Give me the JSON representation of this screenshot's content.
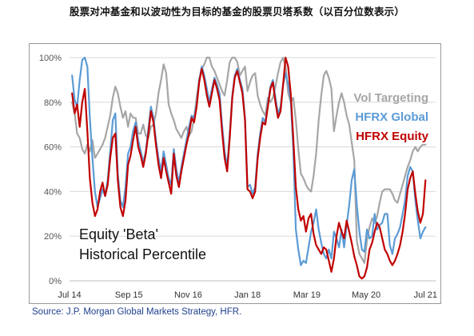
{
  "title": "股票对冲基金和以波动性为目标的基金的股票贝塔系数（以百分位数表示）",
  "source": "Source: J.P. Morgan Global Markets Strategy, HFR.",
  "chart_data": {
    "type": "line",
    "title": "",
    "xlabel": "",
    "ylabel": "",
    "ylim": [
      0,
      100
    ],
    "xlim": [
      2014.5,
      2021.7
    ],
    "y_ticks": [
      0,
      20,
      40,
      60,
      80,
      100
    ],
    "y_tick_labels": [
      "0%",
      "20%",
      "40%",
      "60%",
      "80%",
      "100%"
    ],
    "x_ticks": [
      2014.5,
      2015.667,
      2016.833,
      2018.0,
      2019.167,
      2020.333,
      2021.5
    ],
    "x_tick_labels": [
      "Jul 14",
      "Sep 15",
      "Nov 16",
      "Jan 18",
      "Mar 19",
      "May 20",
      "Jul 21"
    ],
    "grid": "horizontal",
    "legend_position": "top-right",
    "annotation": [
      "Equity 'Beta'",
      "Historical Percentile"
    ],
    "series": [
      {
        "name": "Vol Targeting",
        "color": "#a6a6a6",
        "x": [
          2014.55,
          2014.6,
          2014.65,
          2014.7,
          2014.75,
          2014.8,
          2014.85,
          2014.9,
          2014.95,
          2015.0,
          2015.05,
          2015.1,
          2015.15,
          2015.2,
          2015.25,
          2015.3,
          2015.35,
          2015.4,
          2015.45,
          2015.5,
          2015.55,
          2015.6,
          2015.65,
          2015.7,
          2015.75,
          2015.8,
          2015.85,
          2015.9,
          2015.95,
          2016.0,
          2016.05,
          2016.1,
          2016.15,
          2016.2,
          2016.25,
          2016.3,
          2016.35,
          2016.4,
          2016.45,
          2016.5,
          2016.55,
          2016.6,
          2016.65,
          2016.7,
          2016.75,
          2016.8,
          2016.85,
          2016.9,
          2016.95,
          2017.0,
          2017.05,
          2017.1,
          2017.15,
          2017.2,
          2017.25,
          2017.3,
          2017.35,
          2017.4,
          2017.45,
          2017.5,
          2017.55,
          2017.6,
          2017.65,
          2017.7,
          2017.75,
          2017.8,
          2017.85,
          2017.9,
          2017.95,
          2018.0,
          2018.05,
          2018.1,
          2018.15,
          2018.2,
          2018.25,
          2018.3,
          2018.35,
          2018.4,
          2018.45,
          2018.5,
          2018.55,
          2018.6,
          2018.65,
          2018.7,
          2018.75,
          2018.8,
          2018.85,
          2018.9,
          2018.95,
          2019.0,
          2019.05,
          2019.1,
          2019.15,
          2019.2,
          2019.25,
          2019.3,
          2019.35,
          2019.4,
          2019.45,
          2019.5,
          2019.55,
          2019.6,
          2019.65,
          2019.7,
          2019.75,
          2019.8,
          2019.85,
          2019.9,
          2019.95,
          2020.0,
          2020.05,
          2020.1,
          2020.15,
          2020.2,
          2020.25,
          2020.3,
          2020.35,
          2020.4,
          2020.45,
          2020.5,
          2020.55,
          2020.6,
          2020.65,
          2020.7,
          2020.75,
          2020.8,
          2020.85,
          2020.9,
          2020.95,
          2021.0,
          2021.05,
          2021.1,
          2021.15,
          2021.2,
          2021.25,
          2021.3,
          2021.35,
          2021.4,
          2021.45,
          2021.5
        ],
        "values": [
          80,
          75,
          66,
          64,
          59,
          57,
          61,
          58,
          63,
          55,
          57,
          59,
          61,
          64,
          69,
          74,
          82,
          87,
          84,
          78,
          73,
          76,
          69,
          75,
          73,
          73,
          66,
          66,
          70,
          65,
          64,
          69,
          70,
          75,
          84,
          90,
          97,
          93,
          79,
          75,
          72,
          68,
          66,
          64,
          67,
          69,
          65,
          67,
          73,
          82,
          90,
          95,
          97,
          100,
          100,
          96,
          94,
          91,
          88,
          85,
          83,
          90,
          98,
          100,
          100,
          98,
          92,
          94,
          96,
          85,
          89,
          92,
          93,
          83,
          79,
          76,
          74,
          82,
          80,
          82,
          87,
          93,
          98,
          100,
          96,
          84,
          80,
          82,
          72,
          59,
          48,
          46,
          43,
          41,
          40,
          47,
          57,
          72,
          83,
          92,
          94,
          91,
          86,
          67,
          74,
          80,
          84,
          80,
          74,
          70,
          62,
          54,
          18,
          12,
          10,
          8,
          18,
          24,
          28,
          26,
          29,
          35,
          40,
          41,
          41,
          41,
          39,
          36,
          35,
          39,
          43,
          47,
          51,
          54,
          58,
          60,
          58,
          60,
          61,
          61
        ]
      },
      {
        "name": "HFRX Global",
        "color": "#5b9bd5",
        "x": [
          2014.55,
          2014.6,
          2014.65,
          2014.7,
          2014.75,
          2014.8,
          2014.85,
          2014.9,
          2014.95,
          2015.0,
          2015.05,
          2015.1,
          2015.15,
          2015.2,
          2015.25,
          2015.3,
          2015.35,
          2015.4,
          2015.45,
          2015.5,
          2015.55,
          2015.6,
          2015.65,
          2015.7,
          2015.75,
          2015.8,
          2015.85,
          2015.9,
          2015.95,
          2016.0,
          2016.05,
          2016.1,
          2016.15,
          2016.2,
          2016.25,
          2016.3,
          2016.35,
          2016.4,
          2016.45,
          2016.5,
          2016.55,
          2016.6,
          2016.65,
          2016.7,
          2016.75,
          2016.8,
          2016.85,
          2016.9,
          2016.95,
          2017.0,
          2017.05,
          2017.1,
          2017.15,
          2017.2,
          2017.25,
          2017.3,
          2017.35,
          2017.4,
          2017.45,
          2017.5,
          2017.55,
          2017.6,
          2017.65,
          2017.7,
          2017.75,
          2017.8,
          2017.85,
          2017.9,
          2017.95,
          2018.0,
          2018.05,
          2018.1,
          2018.15,
          2018.2,
          2018.25,
          2018.3,
          2018.35,
          2018.4,
          2018.45,
          2018.5,
          2018.55,
          2018.6,
          2018.65,
          2018.7,
          2018.75,
          2018.8,
          2018.85,
          2018.9,
          2018.95,
          2019.0,
          2019.05,
          2019.1,
          2019.15,
          2019.2,
          2019.25,
          2019.3,
          2019.35,
          2019.4,
          2019.45,
          2019.5,
          2019.55,
          2019.6,
          2019.65,
          2019.7,
          2019.75,
          2019.8,
          2019.85,
          2019.9,
          2019.95,
          2020.0,
          2020.05,
          2020.1,
          2020.15,
          2020.2,
          2020.25,
          2020.3,
          2020.35,
          2020.4,
          2020.45,
          2020.5,
          2020.55,
          2020.6,
          2020.65,
          2020.7,
          2020.75,
          2020.8,
          2020.85,
          2020.9,
          2020.95,
          2021.0,
          2021.05,
          2021.1,
          2021.15,
          2021.2,
          2021.25,
          2021.3,
          2021.35,
          2021.4,
          2021.45,
          2021.5
        ],
        "values": [
          92,
          81,
          78,
          90,
          99,
          100,
          96,
          73,
          55,
          40,
          33,
          37,
          41,
          38,
          45,
          58,
          72,
          75,
          48,
          36,
          33,
          42,
          57,
          60,
          67,
          71,
          63,
          58,
          53,
          58,
          68,
          78,
          73,
          63,
          55,
          49,
          58,
          52,
          46,
          43,
          59,
          50,
          44,
          51,
          57,
          63,
          69,
          74,
          73,
          79,
          90,
          96,
          92,
          86,
          80,
          86,
          91,
          88,
          84,
          70,
          58,
          51,
          66,
          83,
          92,
          95,
          90,
          86,
          73,
          42,
          43,
          39,
          42,
          57,
          66,
          73,
          71,
          79,
          87,
          90,
          82,
          75,
          78,
          88,
          93,
          88,
          81,
          59,
          23,
          14,
          7,
          9,
          8,
          15,
          22,
          26,
          32,
          23,
          17,
          12,
          10,
          14,
          10,
          22,
          19,
          15,
          23,
          15,
          25,
          34,
          45,
          50,
          34,
          22,
          14,
          13,
          23,
          19,
          20,
          30,
          23,
          25,
          26,
          30,
          30,
          16,
          12,
          19,
          21,
          24,
          30,
          36,
          47,
          51,
          49,
          36,
          27,
          19,
          22,
          24
        ]
      },
      {
        "name": "HFRX Equity",
        "color": "#c00000",
        "x": [
          2014.55,
          2014.6,
          2014.65,
          2014.7,
          2014.75,
          2014.8,
          2014.85,
          2014.9,
          2014.95,
          2015.0,
          2015.05,
          2015.1,
          2015.15,
          2015.2,
          2015.25,
          2015.3,
          2015.35,
          2015.4,
          2015.45,
          2015.5,
          2015.55,
          2015.6,
          2015.65,
          2015.7,
          2015.75,
          2015.8,
          2015.85,
          2015.9,
          2015.95,
          2016.0,
          2016.05,
          2016.1,
          2016.15,
          2016.2,
          2016.25,
          2016.3,
          2016.35,
          2016.4,
          2016.45,
          2016.5,
          2016.55,
          2016.6,
          2016.65,
          2016.7,
          2016.75,
          2016.8,
          2016.85,
          2016.9,
          2016.95,
          2017.0,
          2017.05,
          2017.1,
          2017.15,
          2017.2,
          2017.25,
          2017.3,
          2017.35,
          2017.4,
          2017.45,
          2017.5,
          2017.55,
          2017.6,
          2017.65,
          2017.7,
          2017.75,
          2017.8,
          2017.85,
          2017.9,
          2017.95,
          2018.0,
          2018.05,
          2018.1,
          2018.15,
          2018.2,
          2018.25,
          2018.3,
          2018.35,
          2018.4,
          2018.45,
          2018.5,
          2018.55,
          2018.6,
          2018.65,
          2018.7,
          2018.75,
          2018.8,
          2018.85,
          2018.9,
          2018.95,
          2019.0,
          2019.05,
          2019.1,
          2019.15,
          2019.2,
          2019.25,
          2019.3,
          2019.35,
          2019.4,
          2019.45,
          2019.5,
          2019.55,
          2019.6,
          2019.65,
          2019.7,
          2019.75,
          2019.8,
          2019.85,
          2019.9,
          2019.95,
          2020.0,
          2020.05,
          2020.1,
          2020.15,
          2020.2,
          2020.25,
          2020.3,
          2020.35,
          2020.4,
          2020.45,
          2020.5,
          2020.55,
          2020.6,
          2020.65,
          2020.7,
          2020.75,
          2020.8,
          2020.85,
          2020.9,
          2020.95,
          2021.0,
          2021.05,
          2021.1,
          2021.15,
          2021.2,
          2021.25,
          2021.3,
          2021.35,
          2021.4,
          2021.45,
          2021.5
        ],
        "values": [
          84,
          75,
          79,
          69,
          80,
          86,
          67,
          46,
          35,
          29,
          32,
          40,
          44,
          38,
          43,
          55,
          64,
          66,
          45,
          33,
          29,
          36,
          52,
          56,
          63,
          69,
          60,
          56,
          51,
          57,
          66,
          76,
          71,
          61,
          52,
          46,
          55,
          49,
          44,
          39,
          57,
          47,
          42,
          49,
          55,
          61,
          66,
          73,
          71,
          78,
          89,
          95,
          90,
          83,
          78,
          84,
          90,
          86,
          81,
          67,
          55,
          49,
          64,
          82,
          91,
          94,
          89,
          84,
          72,
          41,
          40,
          37,
          40,
          55,
          64,
          71,
          70,
          78,
          86,
          89,
          80,
          73,
          76,
          88,
          100,
          96,
          84,
          64,
          42,
          32,
          27,
          29,
          22,
          28,
          30,
          21,
          16,
          14,
          12,
          15,
          14,
          9,
          4,
          10,
          20,
          26,
          22,
          19,
          27,
          22,
          17,
          11,
          7,
          2,
          1,
          2,
          6,
          14,
          17,
          22,
          26,
          24,
          19,
          14,
          12,
          9,
          7,
          9,
          12,
          16,
          22,
          30,
          41,
          46,
          49,
          39,
          31,
          26,
          30,
          45
        ]
      }
    ]
  }
}
